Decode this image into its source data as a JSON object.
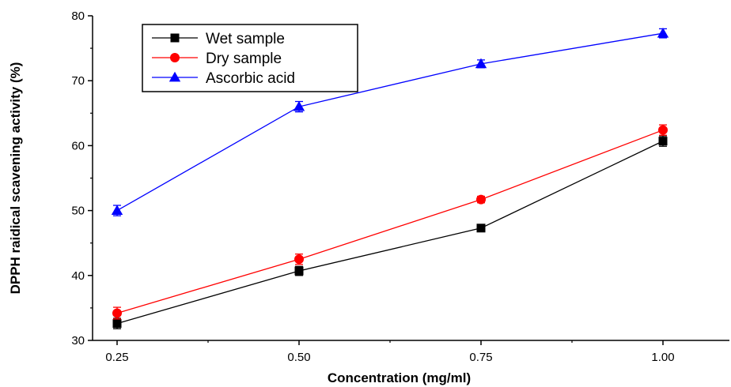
{
  "chart_data": {
    "type": "line",
    "xlabel": "Concentration (mg/ml)",
    "ylabel": "DPPH raidical scavening activity (%)",
    "x": [
      0.25,
      0.5,
      0.75,
      1.0
    ],
    "x_tick_labels": [
      "0.25",
      "0.50",
      "0.75",
      "1.00"
    ],
    "y_ticks": [
      30,
      40,
      50,
      60,
      70,
      80
    ],
    "xlim": [
      0.25,
      1.0
    ],
    "ylim": [
      30,
      80
    ],
    "grid": false,
    "legend_position": "top-left",
    "series": [
      {
        "name": "Wet sample",
        "values": [
          32.6,
          40.7,
          47.3,
          60.7
        ],
        "errors": [
          0.8,
          0.7,
          0.5,
          0.8
        ],
        "color": "#000000",
        "marker": "square"
      },
      {
        "name": "Dry sample",
        "values": [
          34.2,
          42.5,
          51.7,
          62.4
        ],
        "errors": [
          0.9,
          0.8,
          0.5,
          0.8
        ],
        "color": "#ff0000",
        "marker": "circle"
      },
      {
        "name": "Ascorbic acid",
        "values": [
          50.0,
          66.0,
          72.6,
          77.3
        ],
        "errors": [
          0.8,
          0.8,
          0.6,
          0.7
        ],
        "color": "#0000ff",
        "marker": "triangle"
      }
    ]
  }
}
